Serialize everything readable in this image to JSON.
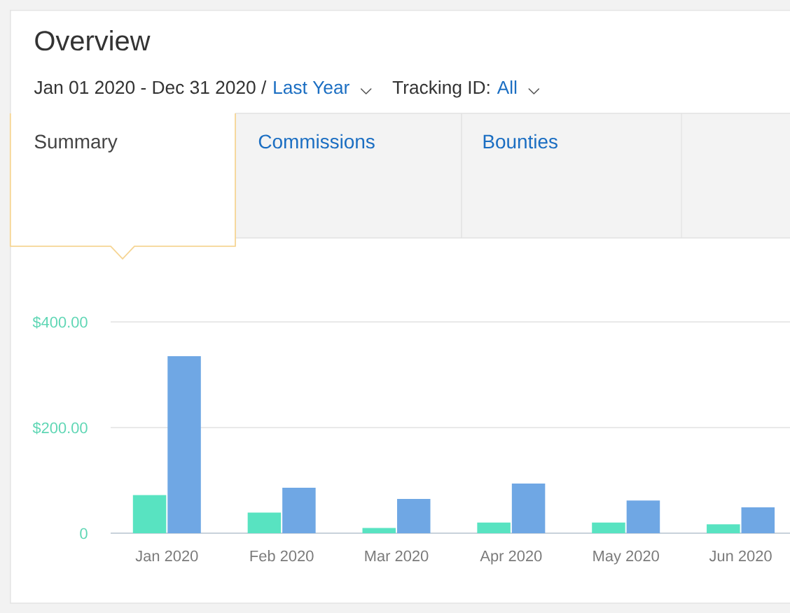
{
  "chart_data": {
    "type": "bar",
    "title": "Overview",
    "annotations": [
      "Jan 01 2020 - Dec 31 2020 /",
      "Last Year",
      "Tracking ID:",
      "All",
      "Summary",
      "Commissions",
      "Bounties"
    ],
    "categories": [
      "Jan 2020",
      "Feb 2020",
      "Mar 2020",
      "Apr 2020",
      "May 2020",
      "Jun 2020"
    ],
    "series": [
      {
        "color": "#58e3c1",
        "values": [
          72,
          39,
          10,
          20,
          20,
          17
        ]
      },
      {
        "color": "#6fa7e4",
        "values": [
          335,
          86,
          65,
          94,
          62,
          49
        ]
      }
    ],
    "ylim": [
      0,
      400
    ],
    "yticks": [
      0,
      {
        "value": 200,
        "label": "$200.00"
      },
      {
        "value": 400,
        "label": "$400.00"
      }
    ],
    "grid": "y"
  }
}
